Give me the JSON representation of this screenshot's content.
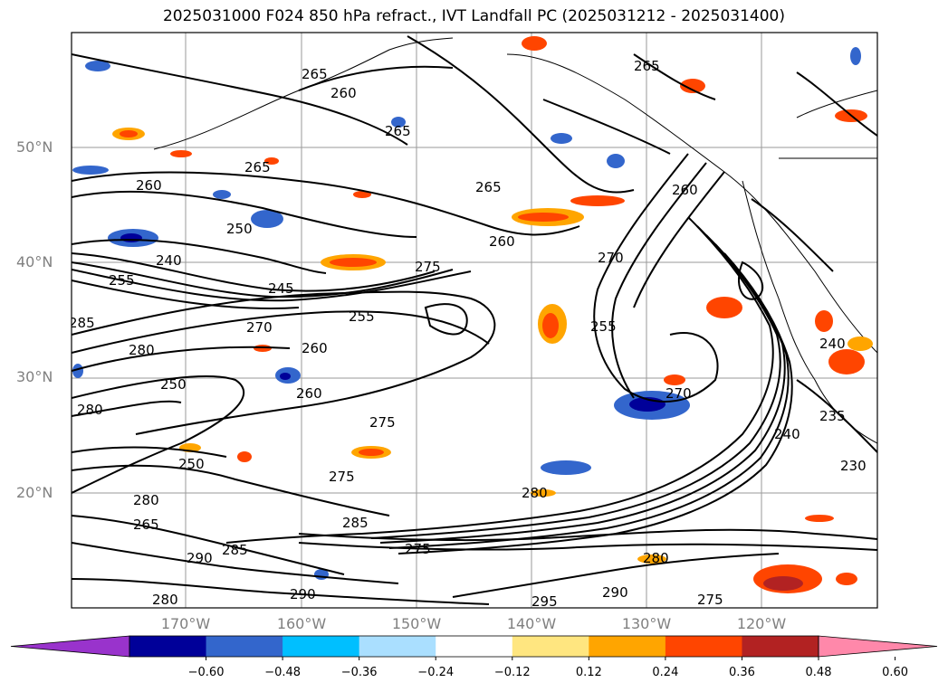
{
  "title": "2025031000 F024 850 hPa refract., IVT Landfall PC (2025031212 - 2025031400)",
  "lat_labels": [
    "50°N",
    "40°N",
    "30°N",
    "20°N"
  ],
  "lon_labels": [
    "170°W",
    "160°W",
    "150°W",
    "140°W",
    "130°W",
    "120°W"
  ],
  "contour_labels": [
    "265",
    "260",
    "265",
    "265",
    "260",
    "250",
    "240",
    "255",
    "245",
    "275",
    "255",
    "285",
    "280",
    "270",
    "260",
    "250",
    "260",
    "275",
    "280",
    "270",
    "250",
    "265",
    "280",
    "260",
    "275",
    "265",
    "280",
    "285",
    "290",
    "285",
    "280",
    "275",
    "290",
    "280",
    "295",
    "290",
    "275",
    "240",
    "230",
    "235",
    "240",
    "260",
    "270",
    "255",
    "265"
  ],
  "colorbar": {
    "ticks": [
      "−0.60",
      "−0.48",
      "−0.36",
      "−0.24",
      "−0.12",
      "0.12",
      "0.24",
      "0.36",
      "0.48",
      "0.60"
    ],
    "colors": [
      "#9933cc",
      "#000099",
      "#3366cc",
      "#00bfff",
      "#aadfff",
      "#ffffff",
      "#ffe680",
      "#ffa500",
      "#ff4500",
      "#b22222",
      "#ff88aa"
    ]
  }
}
